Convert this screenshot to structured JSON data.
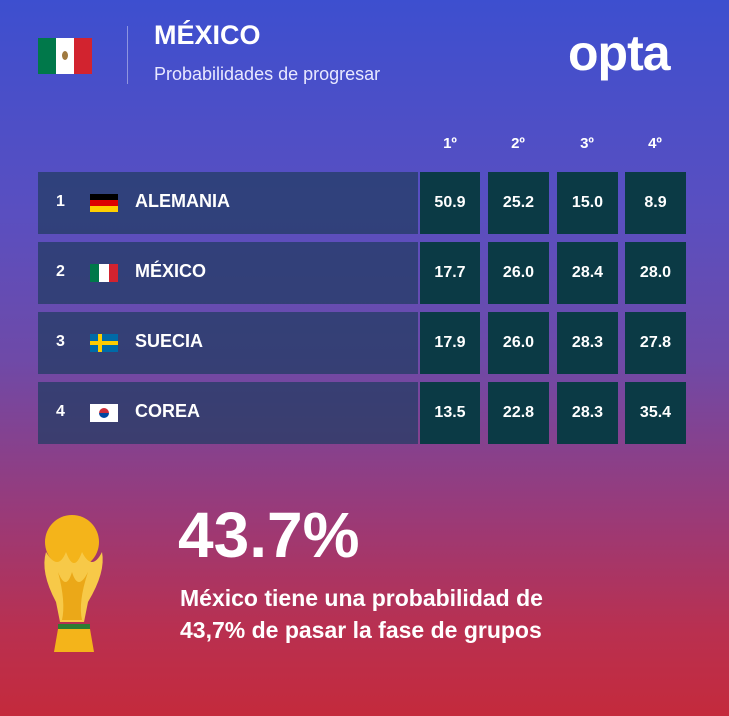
{
  "header": {
    "title": "MÉXICO",
    "subtitle": "Probabilidades de progresar",
    "logo": "opta",
    "flag": "mexico"
  },
  "table": {
    "columns": [
      "1º",
      "2º",
      "3º",
      "4º"
    ],
    "rows": [
      {
        "rank": "1",
        "team": "ALEMANIA",
        "flag": "germany",
        "values": [
          "50.9",
          "25.2",
          "15.0",
          "8.9"
        ]
      },
      {
        "rank": "2",
        "team": "MÉXICO",
        "flag": "mexico",
        "values": [
          "17.7",
          "26.0",
          "28.4",
          "28.0"
        ]
      },
      {
        "rank": "3",
        "team": "SUECIA",
        "flag": "sweden",
        "values": [
          "17.9",
          "26.0",
          "28.3",
          "27.8"
        ]
      },
      {
        "rank": "4",
        "team": "COREA",
        "flag": "south-korea",
        "values": [
          "13.5",
          "22.8",
          "28.3",
          "35.4"
        ]
      }
    ]
  },
  "highlight": {
    "value": "43.7%",
    "line1": "México tiene una probabilidad de",
    "line2": "43,7% de pasar la fase de grupos",
    "icon": "world-cup-trophy-icon"
  },
  "colors": {
    "cell": "#0b3a45",
    "row": "#233c64",
    "top": "#3d4fcf",
    "bottom": "#c42a3c"
  }
}
